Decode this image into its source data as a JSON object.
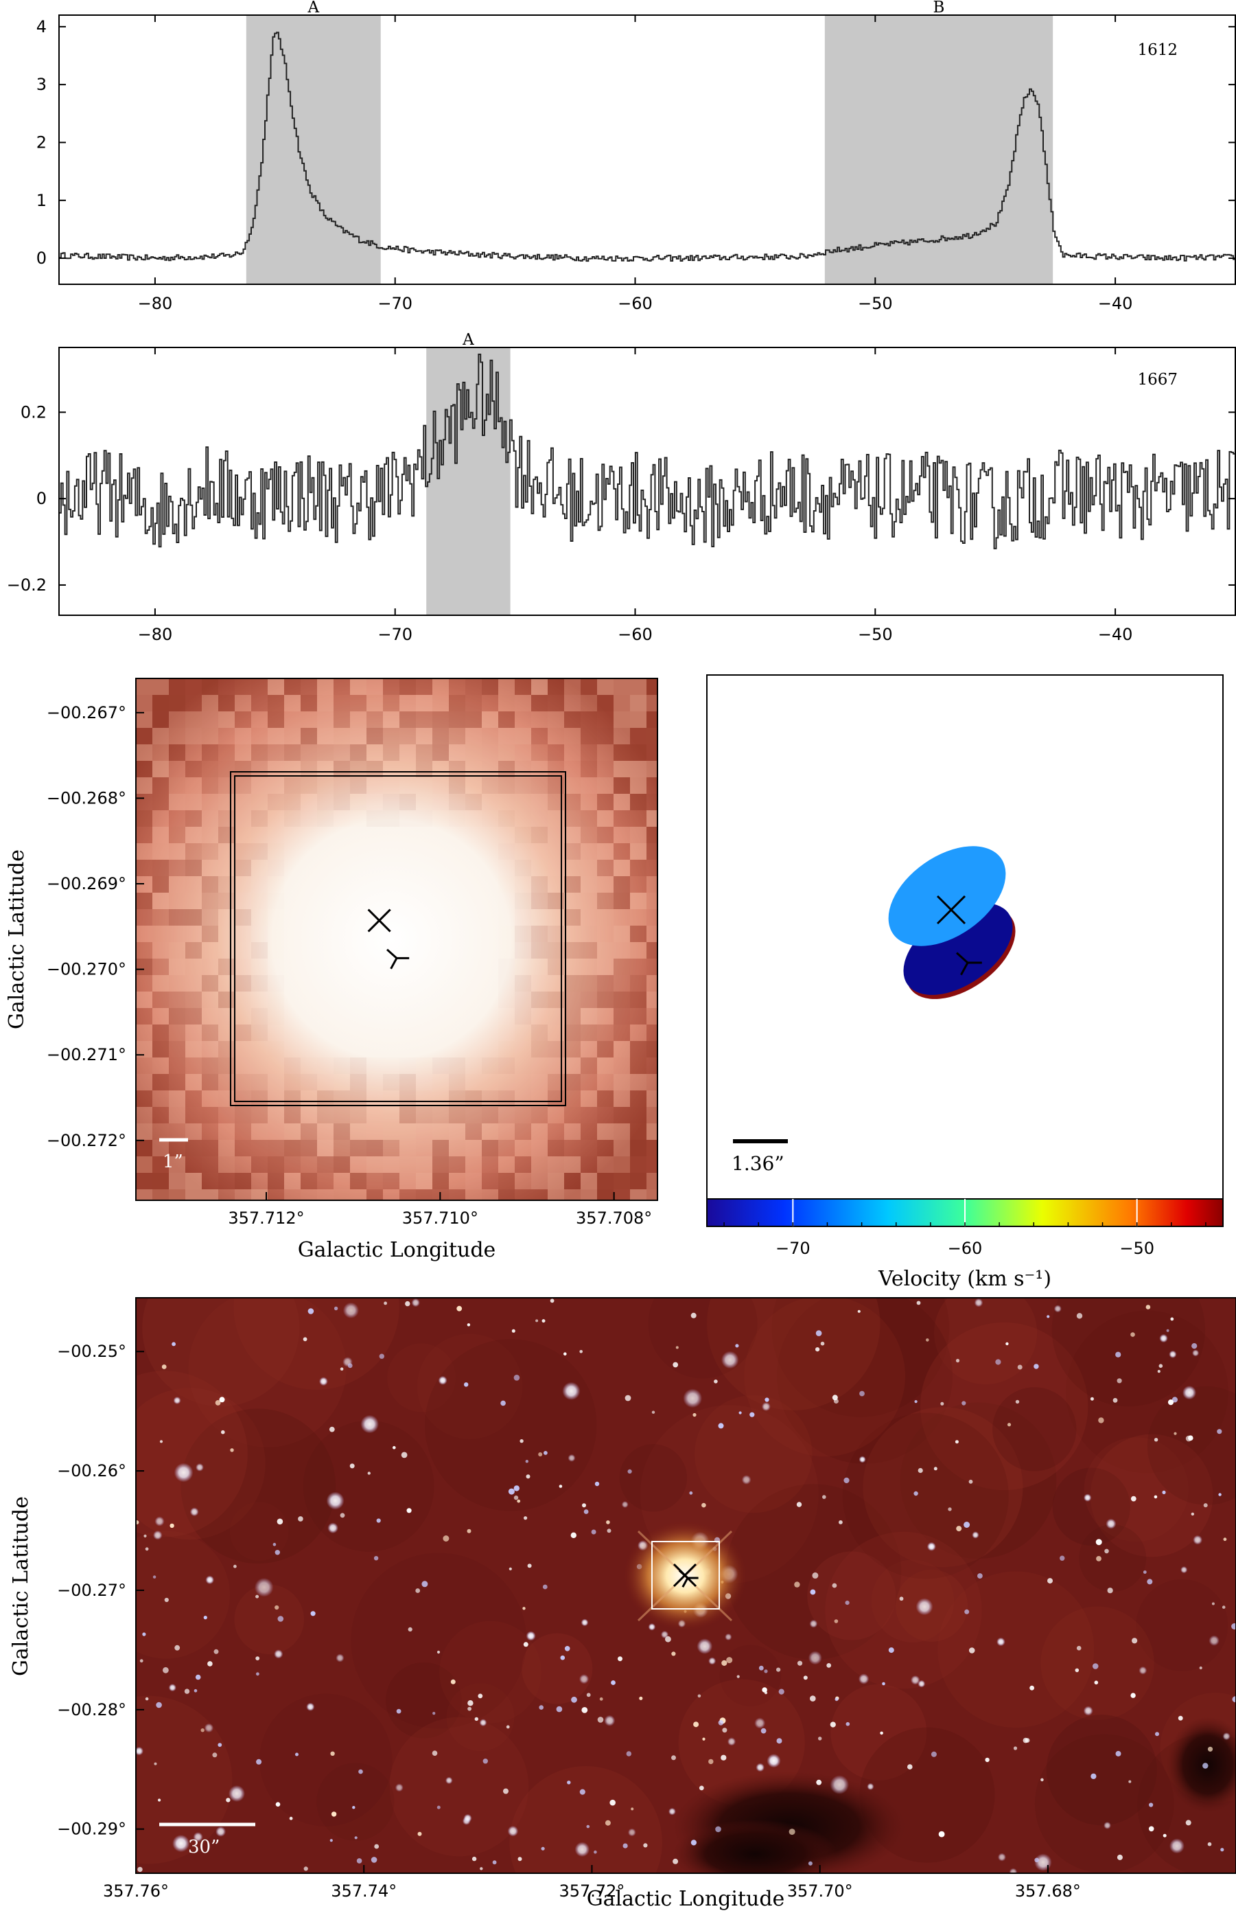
{
  "chart_data": [
    {
      "type": "line",
      "panel": "spectrum-1612",
      "label": "1612",
      "xlim": [
        -84,
        -35
      ],
      "ylim": [
        -0.45,
        4.2
      ],
      "xticks": [
        -80,
        -70,
        -60,
        -50,
        -40
      ],
      "xtick_labels": [
        "−80",
        "−70",
        "−60",
        "−50",
        "−40"
      ],
      "yticks": [
        0,
        1,
        2,
        3,
        4
      ],
      "ytick_labels": [
        "0",
        "1",
        "2",
        "3",
        "4"
      ],
      "regions": [
        {
          "name": "A",
          "from": -76.2,
          "to": -70.6
        },
        {
          "name": "B",
          "from": -52.1,
          "to": -42.6
        }
      ],
      "series": [
        {
          "values": [
            [
              -84,
              0.05
            ],
            [
              -80,
              0.0
            ],
            [
              -77,
              0.04
            ],
            [
              -76.4,
              0.1
            ],
            [
              -76.0,
              0.5
            ],
            [
              -75.6,
              1.6
            ],
            [
              -75.3,
              3.0
            ],
            [
              -75.1,
              3.8
            ],
            [
              -74.9,
              3.9
            ],
            [
              -74.6,
              3.3
            ],
            [
              -74.3,
              2.5
            ],
            [
              -74.0,
              1.8
            ],
            [
              -73.6,
              1.2
            ],
            [
              -73.0,
              0.75
            ],
            [
              -72.3,
              0.5
            ],
            [
              -71.5,
              0.32
            ],
            [
              -70.6,
              0.2
            ],
            [
              -69,
              0.12
            ],
            [
              -66,
              0.05
            ],
            [
              -62,
              0.0
            ],
            [
              -58,
              0.0
            ],
            [
              -55,
              0.02
            ],
            [
              -53,
              0.03
            ],
            [
              -52,
              0.12
            ],
            [
              -50,
              0.22
            ],
            [
              -48,
              0.3
            ],
            [
              -46,
              0.4
            ],
            [
              -45,
              0.6
            ],
            [
              -44.5,
              1.2
            ],
            [
              -44.1,
              2.2
            ],
            [
              -43.8,
              2.8
            ],
            [
              -43.5,
              2.9
            ],
            [
              -43.2,
              2.6
            ],
            [
              -42.9,
              1.5
            ],
            [
              -42.6,
              0.5
            ],
            [
              -42.2,
              0.05
            ],
            [
              -38,
              0.0
            ],
            [
              -35,
              0.02
            ]
          ]
        }
      ]
    },
    {
      "type": "line",
      "panel": "spectrum-1667",
      "label": "1667",
      "xlim": [
        -84,
        -35
      ],
      "ylim": [
        -0.27,
        0.35
      ],
      "xticks": [
        -80,
        -70,
        -60,
        -50,
        -40
      ],
      "xtick_labels": [
        "−80",
        "−70",
        "−60",
        "−50",
        "−40"
      ],
      "yticks": [
        -0.2,
        0,
        0.2
      ],
      "ytick_labels": [
        "−0.2",
        "0",
        "0.2"
      ],
      "regions": [
        {
          "name": "A",
          "from": -68.7,
          "to": -65.2
        }
      ],
      "series": [
        {
          "values": [
            [
              -84,
              0.0
            ],
            [
              -82,
              0.02
            ],
            [
              -80,
              -0.03
            ],
            [
              -78,
              0.03
            ],
            [
              -76,
              0.0
            ],
            [
              -74,
              0.02
            ],
            [
              -72,
              -0.01
            ],
            [
              -70,
              0.02
            ],
            [
              -68.5,
              0.1
            ],
            [
              -67.5,
              0.18
            ],
            [
              -66.5,
              0.24
            ],
            [
              -65.5,
              0.2
            ],
            [
              -65,
              0.08
            ],
            [
              -63,
              0.0
            ],
            [
              -60,
              0.01
            ],
            [
              -57,
              -0.02
            ],
            [
              -54,
              0.02
            ],
            [
              -51,
              0.0
            ],
            [
              -48,
              0.01
            ],
            [
              -45,
              -0.02
            ],
            [
              -42,
              0.02
            ],
            [
              -39,
              0.0
            ],
            [
              -35,
              0.02
            ]
          ],
          "noise": 0.1
        }
      ]
    },
    {
      "type": "heatmap",
      "panel": "zoom-image",
      "xlabel": "Galactic Longitude",
      "ylabel": "Galactic Latitude",
      "xlim": [
        357.7135,
        357.7075
      ],
      "ylim": [
        -0.2727,
        -0.2666
      ],
      "xticks": [
        357.712,
        357.71,
        357.708
      ],
      "xtick_labels": [
        "357.712°",
        "357.710°",
        "357.708°"
      ],
      "yticks": [
        -0.267,
        -0.268,
        -0.269,
        -0.27,
        -0.271,
        -0.272
      ],
      "ytick_labels": [
        "−00.267°",
        "−00.268°",
        "−00.269°",
        "−00.270°",
        "−00.271°",
        "−00.272°"
      ],
      "scale_label": "1”",
      "markers": [
        {
          "symbol": "x",
          "l": 357.7107,
          "b": -0.26943
        },
        {
          "symbol": "y",
          "l": 357.7105,
          "b": -0.26987
        }
      ]
    },
    {
      "type": "scatter",
      "panel": "velocity-ellipses",
      "xlabel": "Velocity (km s⁻¹)",
      "vlim": [
        -75,
        -45
      ],
      "cticks": [
        -70,
        -60,
        -50
      ],
      "ctick_labels": [
        "−70",
        "−60",
        "−50"
      ],
      "scale_label": "1.36”",
      "ellipses": [
        {
          "velocity": -43.5,
          "color": "#8b0d0d"
        },
        {
          "velocity": -75.0,
          "color": "#0a0a90"
        },
        {
          "velocity": -67.0,
          "color": "#1f9bff"
        }
      ]
    },
    {
      "type": "heatmap",
      "panel": "wide-image",
      "xlabel": "Galactic Longitude",
      "ylabel": "Galactic Latitude",
      "xlim": [
        357.76,
        357.6635
      ],
      "ylim": [
        -0.2937,
        -0.2455
      ],
      "xticks": [
        357.76,
        357.74,
        357.72,
        357.7,
        357.68
      ],
      "xtick_labels": [
        "357.76°",
        "357.74°",
        "357.72°",
        "357.70°",
        "357.68°"
      ],
      "yticks": [
        -0.25,
        -0.26,
        -0.27,
        -0.28,
        -0.29
      ],
      "ytick_labels": [
        "−00.25°",
        "−00.26°",
        "−00.27°",
        "−00.28°",
        "−00.29°"
      ],
      "scale_label": "30”"
    }
  ]
}
